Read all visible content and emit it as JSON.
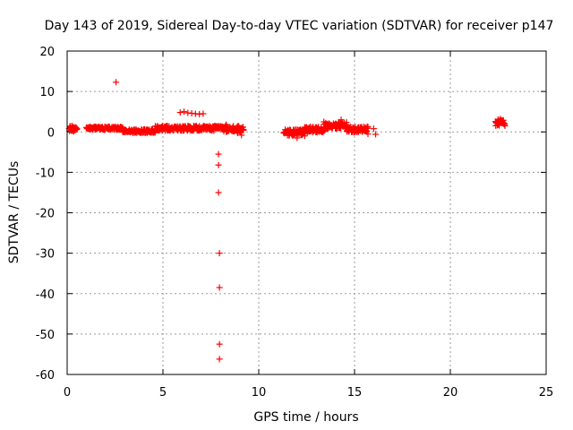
{
  "chart_data": {
    "type": "scatter",
    "title": "Day 143 of 2019, Sidereal Day-to-day VTEC variation (SDTVAR) for receiver p147",
    "xlabel": "GPS time / hours",
    "ylabel": "SDTVAR / TECUs",
    "xlim": [
      0,
      25
    ],
    "ylim": [
      -60,
      20
    ],
    "xticks": [
      0,
      5,
      10,
      15,
      20,
      25
    ],
    "yticks": [
      -60,
      -50,
      -40,
      -30,
      -20,
      -10,
      0,
      10,
      20
    ],
    "grid": true,
    "marker": "+",
    "color": "#ff0000",
    "series": [
      {
        "name": "SDTVAR",
        "points": [
          [
            0.2,
            0.8
          ],
          [
            0.25,
            1.5
          ],
          [
            0.3,
            0.3
          ],
          [
            0.35,
            1.0
          ],
          [
            0.4,
            0.5
          ],
          [
            2.55,
            12.3
          ],
          [
            5.9,
            4.8
          ],
          [
            6.1,
            5.0
          ],
          [
            6.3,
            4.7
          ],
          [
            6.5,
            4.6
          ],
          [
            6.7,
            4.5
          ],
          [
            6.9,
            4.4
          ],
          [
            7.1,
            4.5
          ],
          [
            7.9,
            -5.5
          ],
          [
            7.9,
            -8.2
          ],
          [
            7.9,
            -15.0
          ],
          [
            7.95,
            -30.0
          ],
          [
            7.95,
            -38.5
          ],
          [
            7.95,
            -52.5
          ],
          [
            7.95,
            -56.2
          ],
          [
            8.3,
            1.8
          ],
          [
            8.5,
            1.2
          ],
          [
            8.7,
            0.5
          ],
          [
            8.9,
            -0.3
          ],
          [
            9.1,
            -0.8
          ],
          [
            9.2,
            0.6
          ],
          [
            11.4,
            0.0
          ],
          [
            11.6,
            -0.8
          ],
          [
            11.8,
            0.5
          ],
          [
            12.0,
            -1.5
          ],
          [
            12.2,
            -0.5
          ],
          [
            12.4,
            0.8
          ],
          [
            12.6,
            0.2
          ],
          [
            12.8,
            1.0
          ],
          [
            13.0,
            0.5
          ],
          [
            13.4,
            2.5
          ],
          [
            13.6,
            1.8
          ],
          [
            13.8,
            1.0
          ],
          [
            14.0,
            2.0
          ],
          [
            14.3,
            3.0
          ],
          [
            14.6,
            1.5
          ],
          [
            14.9,
            0.5
          ],
          [
            15.2,
            0.0
          ],
          [
            15.5,
            0.8
          ],
          [
            15.7,
            -0.5
          ],
          [
            16.0,
            0.8
          ],
          [
            16.1,
            -0.6
          ],
          [
            22.4,
            2.5
          ],
          [
            22.5,
            1.8
          ],
          [
            22.6,
            3.2
          ],
          [
            22.7,
            2.8
          ],
          [
            22.8,
            1.9
          ]
        ],
        "dense_segments": [
          {
            "x_range": [
              0.1,
              0.5
            ],
            "y_center": 0.8,
            "y_spread": 1.4
          },
          {
            "x_range": [
              1.0,
              2.9
            ],
            "y_center": 0.9,
            "y_spread": 0.8
          },
          {
            "x_range": [
              2.9,
              4.6
            ],
            "y_center": 0.2,
            "y_spread": 0.9
          },
          {
            "x_range": [
              4.6,
              7.7
            ],
            "y_center": 0.9,
            "y_spread": 1.2
          },
          {
            "x_range": [
              7.7,
              8.1
            ],
            "y_center": 1.2,
            "y_spread": 0.9
          },
          {
            "x_range": [
              8.1,
              9.2
            ],
            "y_center": 0.7,
            "y_spread": 1.6
          },
          {
            "x_range": [
              11.3,
              12.4
            ],
            "y_center": -0.2,
            "y_spread": 1.6
          },
          {
            "x_range": [
              12.4,
              13.4
            ],
            "y_center": 0.6,
            "y_spread": 1.4
          },
          {
            "x_range": [
              13.4,
              14.6
            ],
            "y_center": 1.6,
            "y_spread": 1.6
          },
          {
            "x_range": [
              14.6,
              15.7
            ],
            "y_center": 0.6,
            "y_spread": 1.4
          },
          {
            "x_range": [
              22.35,
              22.85
            ],
            "y_center": 2.3,
            "y_spread": 1.6
          }
        ]
      }
    ]
  }
}
